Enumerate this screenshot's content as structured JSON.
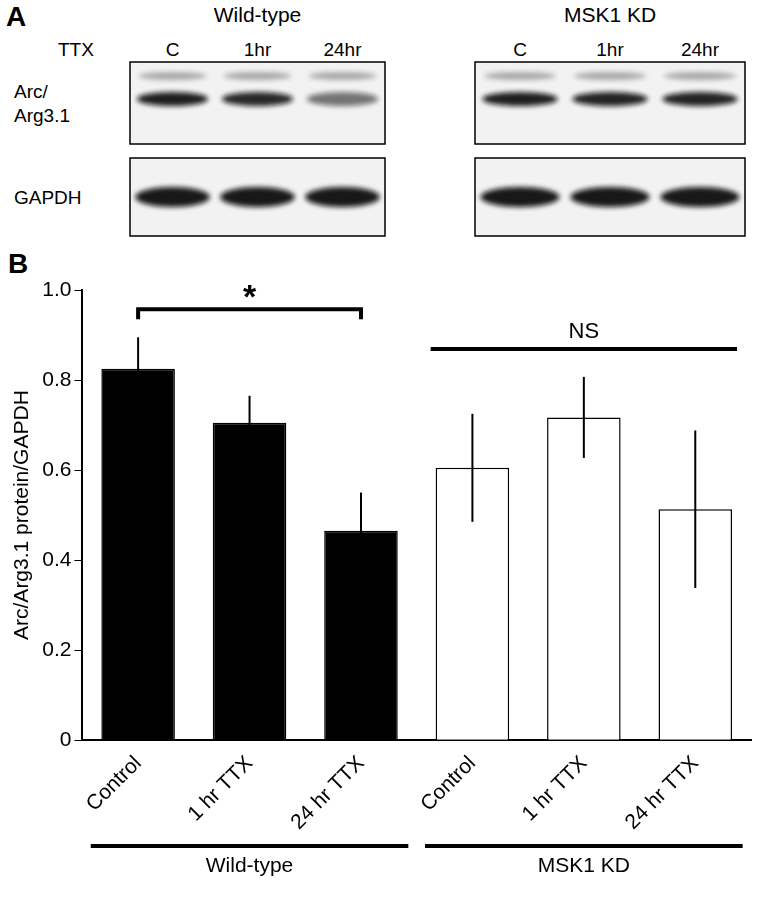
{
  "panel_a": {
    "panel_label": "A",
    "treatment": "TTX",
    "blots": [
      {
        "title": "Wild-type",
        "lanes": [
          "C",
          "1hr",
          "24hr"
        ]
      },
      {
        "title": "MSK1 KD",
        "lanes": [
          "C",
          "1hr",
          "24hr"
        ]
      }
    ],
    "rows": [
      {
        "label_lines": [
          "Arc/",
          "Arg3.1"
        ]
      },
      {
        "label_lines": [
          "GAPDH"
        ]
      }
    ]
  },
  "chart_data": {
    "type": "bar",
    "panel_label": "B",
    "categories": [
      "Control",
      "1 hr TTX",
      "24 hr TTX",
      "Control",
      "1 hr TTX",
      "24 hr TTX"
    ],
    "values": [
      0.825,
      0.705,
      0.465,
      0.605,
      0.717,
      0.513
    ],
    "errors": [
      0.07,
      0.06,
      0.085,
      0.12,
      0.09,
      0.175
    ],
    "colors": [
      "#000000",
      "#000000",
      "#000000",
      "#ffffff",
      "#ffffff",
      "#ffffff"
    ],
    "groups": [
      {
        "label": "Wild-type",
        "from": 0,
        "to": 2
      },
      {
        "label": "MSK1 KD",
        "from": 3,
        "to": 5
      }
    ],
    "annotations": [
      {
        "text": "*",
        "from": 0,
        "to": 2,
        "line_style": "bracket"
      },
      {
        "text": "NS",
        "from": 3,
        "to": 5,
        "line_style": "solid"
      }
    ],
    "y_label": "Arc/Arg3.1 protein/GAPDH",
    "ylim": [
      0,
      1
    ],
    "yticks": [
      0,
      0.2,
      0.4,
      0.6,
      0.8,
      {
        "value": 1,
        "label": "1.0"
      }
    ],
    "grid": false
  }
}
